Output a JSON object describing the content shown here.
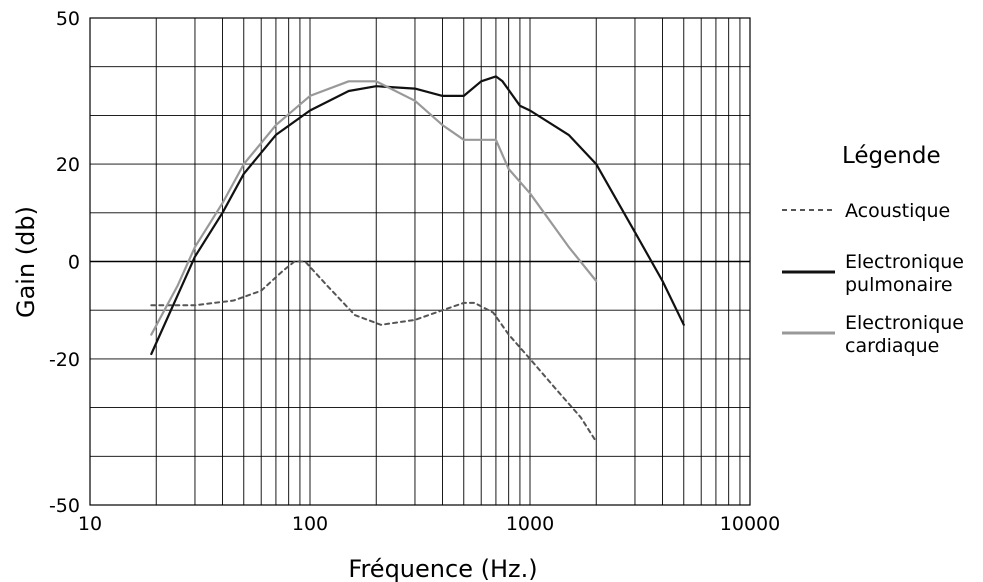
{
  "chart_data": {
    "type": "line",
    "title": "",
    "xlabel": "Fréquence (Hz.)",
    "ylabel": "Gain (db)",
    "x_scale": "log",
    "xlim": [
      10,
      10000
    ],
    "ylim": [
      -50,
      50
    ],
    "grid": true,
    "x_ticks": [
      10,
      100,
      1000,
      10000
    ],
    "x_tick_labels": [
      "10",
      "100",
      "1000",
      "10000"
    ],
    "y_ticks": [
      50,
      20,
      0,
      -20,
      -50
    ],
    "y_tick_labels": [
      "50",
      "20",
      "0",
      "-20",
      "-50"
    ],
    "y_gridlines": [
      -50,
      -40,
      -30,
      -20,
      -10,
      0,
      10,
      20,
      30,
      40,
      50
    ],
    "legend": {
      "title": "Légende",
      "placement": "right"
    },
    "series": [
      {
        "name": "Acoustique",
        "label_lines": [
          "Acoustique"
        ],
        "style": "dashed",
        "color": "#555555",
        "x": [
          19,
          30,
          45,
          60,
          75,
          85,
          95,
          120,
          160,
          210,
          300,
          400,
          500,
          560,
          680,
          800,
          1000,
          1300,
          1700,
          2000
        ],
        "y": [
          -9,
          -9,
          -8,
          -6,
          -2,
          0,
          0,
          -5,
          -11,
          -13,
          -12,
          -10,
          -8.5,
          -8.5,
          -10.5,
          -15,
          -20,
          -26,
          -32,
          -37
        ]
      },
      {
        "name": "Electronique pulmonaire",
        "label_lines": [
          "Electronique",
          "pulmonaire"
        ],
        "style": "solid",
        "color": "#111111",
        "x": [
          19,
          25,
          30,
          40,
          50,
          70,
          100,
          150,
          200,
          300,
          400,
          500,
          600,
          700,
          750,
          900,
          1000,
          1500,
          2000,
          3000,
          4000,
          5000
        ],
        "y": [
          -19,
          -7,
          1,
          10,
          18,
          26,
          31,
          35,
          36,
          35.5,
          34,
          34,
          37,
          38,
          37,
          32,
          31,
          26,
          20,
          6,
          -4,
          -13
        ]
      },
      {
        "name": "Electronique cardiaque",
        "label_lines": [
          "Electronique",
          "cardiaque"
        ],
        "style": "solid",
        "color": "#999999",
        "x": [
          19,
          25,
          30,
          40,
          50,
          70,
          100,
          150,
          200,
          300,
          400,
          500,
          600,
          700,
          800,
          1000,
          1500,
          2000
        ],
        "y": [
          -15,
          -5,
          3,
          12,
          20,
          28,
          34,
          37,
          37,
          33,
          28,
          25,
          25,
          25,
          19,
          14,
          3,
          -4
        ]
      }
    ]
  }
}
